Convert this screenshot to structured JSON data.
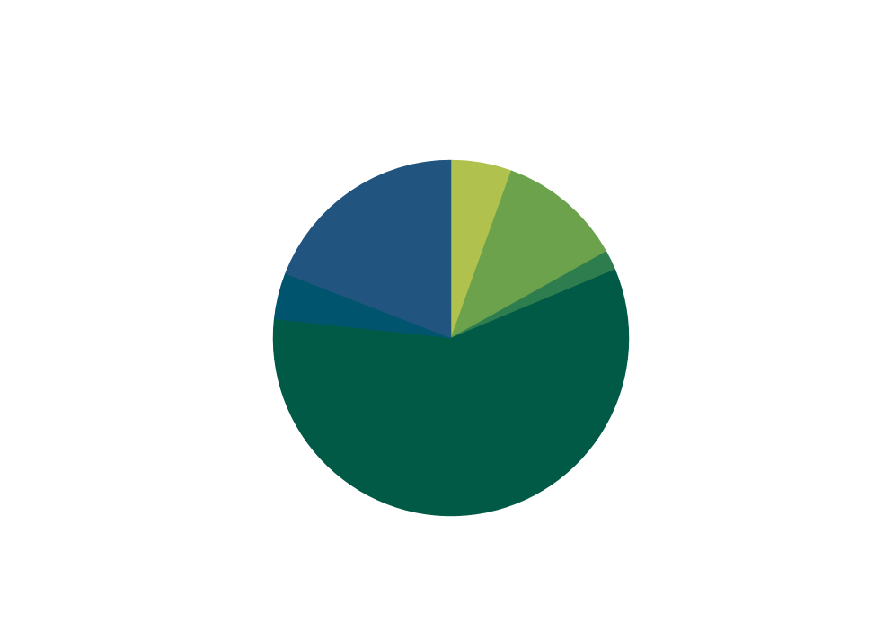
{
  "chart_data": {
    "type": "pie",
    "values": [
      5.5,
      11.4,
      1.8,
      58.0,
      4.2,
      19.1
    ],
    "colors": [
      "#b0c24d",
      "#6ba24b",
      "#2e7d4f",
      "#005a45",
      "#00546e",
      "#21557f"
    ],
    "start_angle": 0,
    "direction": "clockwise"
  }
}
